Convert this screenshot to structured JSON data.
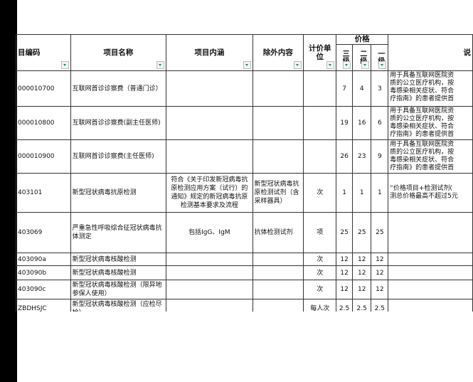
{
  "headers": {
    "code": "目编码",
    "name": "项目名称",
    "content": "项目内涵",
    "exclude": "除外内容",
    "unit": "计价单位",
    "price_group": "价格",
    "price_levels": [
      "三级",
      "二级",
      "一级"
    ],
    "explanation": "说"
  },
  "rows": [
    {
      "code": "000010700",
      "name": "互联网首诊诊察费（普通门诊）",
      "content": "",
      "exclude": "",
      "unit": "",
      "p3": "7",
      "p2": "4",
      "p1": "3",
      "expl": [
        "用于具备互联网医院资",
        "质的公立医疗机构，按",
        "毒感染相关症状、符合",
        "疗指南》的患者提供首"
      ]
    },
    {
      "code": "000010800",
      "name": "互联网首诊诊察费(副主任医师)",
      "content": "",
      "exclude": "",
      "unit": "",
      "p3": "19",
      "p2": "16",
      "p1": "6",
      "expl": [
        "用于具备互联网医院资",
        "质的公立医疗机构，按",
        "毒感染相关症状、符合",
        "疗指南》的患者提供首"
      ]
    },
    {
      "code": "000010900",
      "name": "互联网首诊诊察费(主任医师)",
      "content": "",
      "exclude": "",
      "unit": "",
      "p3": "26",
      "p2": "23",
      "p1": "9",
      "expl": [
        "用于具备互联网医院资",
        "质的公立医疗机构，按",
        "毒感染相关症状、符合",
        "疗指南》的患者提供首"
      ]
    },
    {
      "code": "403101",
      "name": "新型冠状病毒抗原检测",
      "content": "符合《关于印发新冠病毒抗原检测应用方案（试行）的通知》规定的新冠病毒抗原检测基本要求及流程",
      "exclude": "新型冠状病毒抗原检测试剂（含采样器具）",
      "unit": "次",
      "p3": "1",
      "p2": "1",
      "p1": "1",
      "expl": [
        "“价格项目+检测试剂(",
        "测总价格最高不超过5元"
      ]
    },
    {
      "code": "403069",
      "name": "严重急性呼吸综合征冠状病毒抗体测定",
      "content": "包括IgG、IgM",
      "exclude": "抗体检测试剂",
      "unit": "项",
      "p3": "25",
      "p2": "25",
      "p1": "25",
      "expl": []
    },
    {
      "code": "403090a",
      "name": "新型冠状病毒核酸检测",
      "content": "",
      "exclude": "",
      "unit": "次",
      "p3": "12",
      "p2": "12",
      "p1": "12",
      "expl": []
    },
    {
      "code": "403090b",
      "name": "新型冠状病毒核酸检测",
      "content": "",
      "exclude": "",
      "unit": "次",
      "p3": "12",
      "p2": "12",
      "p1": "12",
      "expl": []
    },
    {
      "code": "403090c",
      "name": "新型冠状病毒核酸检测（限异地参保人使用）",
      "content": "",
      "exclude": "",
      "unit": "次",
      "p3": "12",
      "p2": "12",
      "p1": "12",
      "expl": []
    },
    {
      "code": "ZBDHSJC",
      "name": "新型冠状病毒核酸检测（应检尽检）",
      "content": "",
      "exclude": "",
      "unit": "每人次",
      "p3": "2.5",
      "p2": "2.5",
      "p1": "2.5",
      "expl": []
    }
  ]
}
